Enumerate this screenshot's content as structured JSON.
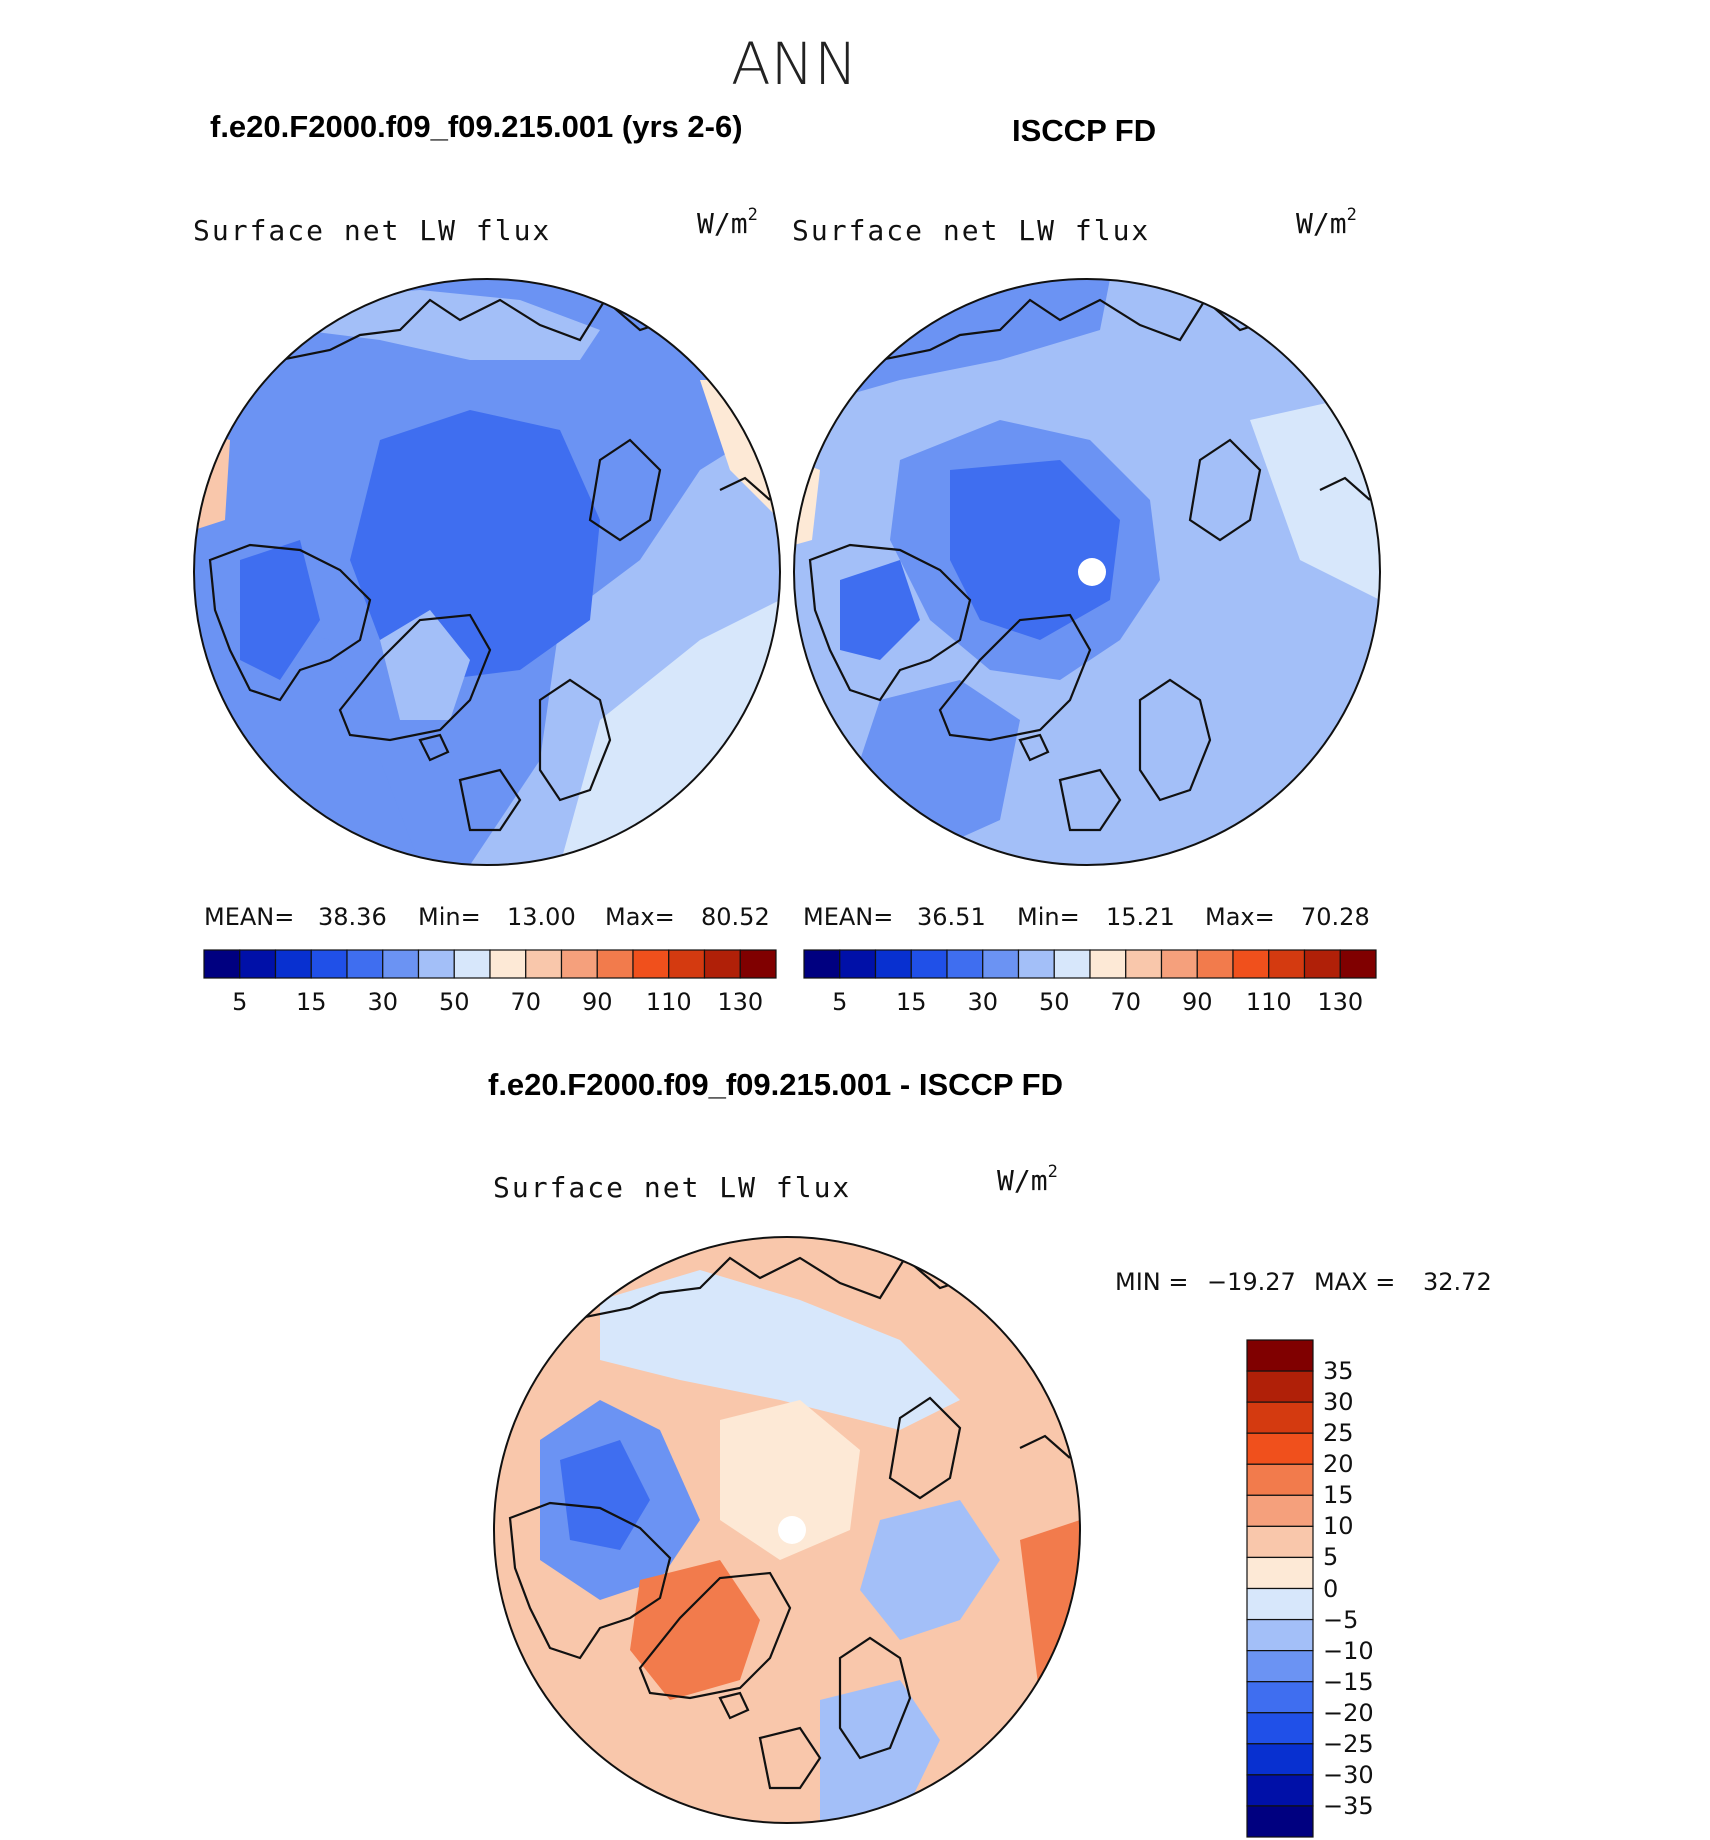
{
  "figure": {
    "title": "ANN"
  },
  "top_left": {
    "case": "f.e20.F2000.f09_f09.215.001 (yrs 2-6)",
    "variable": "Surface net LW flux",
    "units_base": "W/m",
    "units_exp": "2",
    "mean_label": "MEAN=",
    "mean_value": "38.36",
    "min_label": "Min=",
    "min_value": "13.00",
    "max_label": "Max=",
    "max_value": "80.52"
  },
  "top_right": {
    "case": "ISCCP FD",
    "variable": "Surface net LW flux",
    "units_base": "W/m",
    "units_exp": "2",
    "mean_label": "MEAN=",
    "mean_value": "36.51",
    "min_label": "Min=",
    "min_value": "15.21",
    "max_label": "Max=",
    "max_value": "70.28"
  },
  "bottom": {
    "case": "f.e20.F2000.f09_f09.215.001 - ISCCP FD",
    "variable": "Surface net LW flux",
    "units_base": "W/m",
    "units_exp": "2",
    "min_label": "MIN =",
    "min_value": "−19.27",
    "max_label": "MAX =",
    "max_value": "32.72"
  },
  "top_colorbar": {
    "colors": [
      "#000080",
      "#0010a8",
      "#0830d0",
      "#2050e8",
      "#3f6ef0",
      "#6b93f3",
      "#a3bff8",
      "#d7e7fb",
      "#fde9d6",
      "#f9c7ab",
      "#f5a07c",
      "#f27b4c",
      "#f0501c",
      "#d43a10",
      "#b02008",
      "#800000"
    ],
    "tick_labels": [
      "5",
      "15",
      "30",
      "50",
      "70",
      "90",
      "110",
      "130"
    ]
  },
  "diff_colorbar": {
    "colors": [
      "#800000",
      "#b02008",
      "#d43a10",
      "#f0501c",
      "#f27b4c",
      "#f5a07c",
      "#f9c7ab",
      "#fde9d6",
      "#d7e7fb",
      "#a3bff8",
      "#6b93f3",
      "#3f6ef0",
      "#2050e8",
      "#0830d0",
      "#0010a8",
      "#000080"
    ],
    "tick_labels": [
      "35",
      "30",
      "25",
      "20",
      "15",
      "10",
      "5",
      "0",
      "−5",
      "−10",
      "−15",
      "−20",
      "−25",
      "−30",
      "−35"
    ]
  },
  "map_colors": {
    "deep_blue": "#3f6ef0",
    "mid_blue": "#6b93f3",
    "light_blue": "#a3bff8",
    "pale_blue": "#d7e7fb",
    "pale_orange": "#fde9d6",
    "light_orange": "#f9c7ab",
    "orange": "#f5a07c",
    "dark_orange": "#f27b4c",
    "coast": "#111111"
  }
}
